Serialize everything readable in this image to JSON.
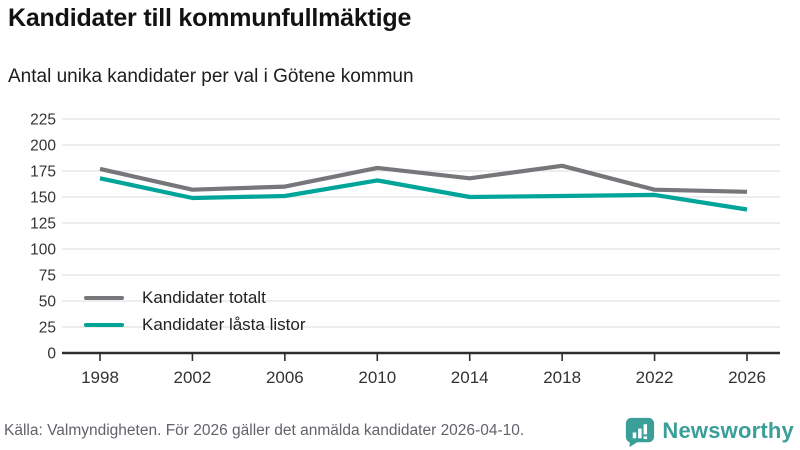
{
  "header": {
    "title": "Kandidater till kommunfullmäktige",
    "subtitle": "Antal unika kandidater per val i Götene kommun"
  },
  "chart_data": {
    "type": "line",
    "x": [
      1998,
      2002,
      2006,
      2010,
      2014,
      2018,
      2022,
      2026
    ],
    "series": [
      {
        "name": "Kandidater totalt",
        "color": "#76767b",
        "values": [
          177,
          157,
          160,
          178,
          168,
          180,
          157,
          155
        ]
      },
      {
        "name": "Kandidater låsta listor",
        "color": "#00a59a",
        "values": [
          168,
          149,
          151,
          166,
          150,
          151,
          152,
          138
        ]
      }
    ],
    "title": "Kandidater till kommunfullmäktige",
    "subtitle": "Antal unika kandidater per val i Götene kommun",
    "xlabel": "",
    "ylabel": "",
    "ylim": [
      0,
      225
    ],
    "y_ticks": [
      0,
      25,
      50,
      75,
      100,
      125,
      150,
      175,
      200,
      225
    ],
    "grid": true,
    "legend_position": "inside-bottom-left",
    "colors": {
      "gridline": "#e2e2e2",
      "axis": "#2e2e2e",
      "tick_label": "#333333"
    }
  },
  "footer": {
    "source": "Källa: Valmyndigheten. För 2026 gäller det anmälda kandidater 2026-04-10.",
    "brand": "Newsworthy"
  }
}
